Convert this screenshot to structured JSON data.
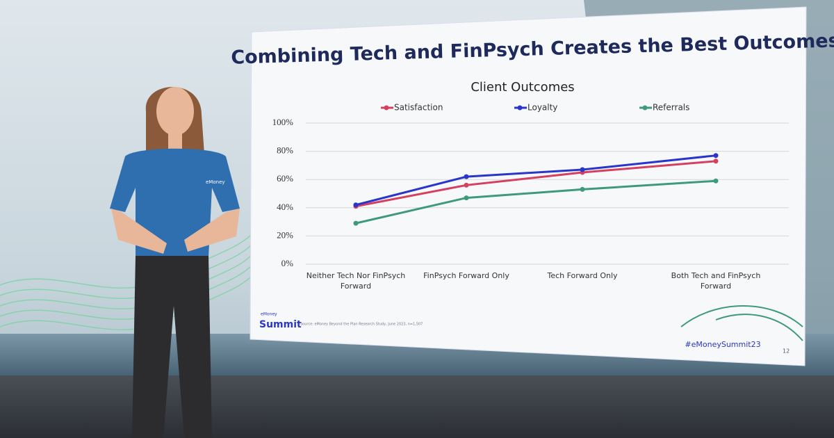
{
  "slide": {
    "title": "Combining Tech and FinPsych Creates the Best Outcomes",
    "logo_small": "eMoney",
    "logo": "Summit",
    "source": "Source: eMoney Beyond the Plan Research Study, June 2023, n=1,507",
    "hashtag": "#eMoneySummit23",
    "page_number": "12"
  },
  "presenter": {
    "shirt_text": "eMoney"
  },
  "chart_data": {
    "type": "line",
    "title": "Client Outcomes",
    "categories": [
      "Neither Tech Nor FinPsych Forward",
      "FinPsych Forward Only",
      "Tech Forward Only",
      "Both Tech and FinPsych Forward"
    ],
    "series": [
      {
        "name": "Satisfaction",
        "color": "#d4405f",
        "values": [
          41,
          56,
          65,
          73
        ]
      },
      {
        "name": "Loyalty",
        "color": "#2a35c9",
        "values": [
          42,
          62,
          67,
          77
        ]
      },
      {
        "name": "Referrals",
        "color": "#3e9a78",
        "values": [
          29,
          47,
          53,
          59
        ]
      }
    ],
    "ylim": [
      0,
      100
    ],
    "yticks": [
      {
        "value": 0,
        "label": "0%"
      },
      {
        "value": 20,
        "label": "20%"
      },
      {
        "value": 40,
        "label": "40%"
      },
      {
        "value": 60,
        "label": "60%"
      },
      {
        "value": 80,
        "label": "80%"
      },
      {
        "value": 100,
        "label": "100%"
      }
    ],
    "grid": true
  }
}
